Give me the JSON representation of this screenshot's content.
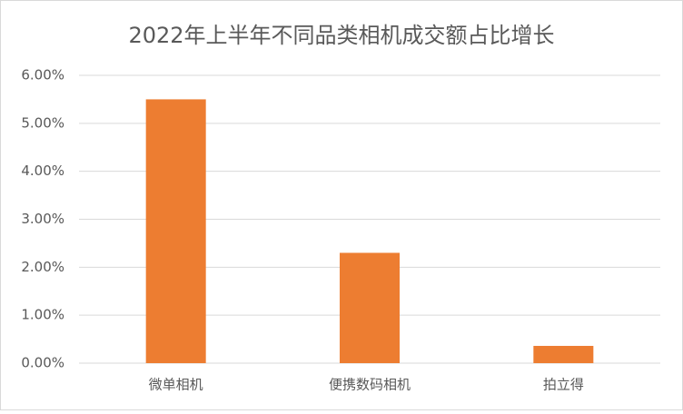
{
  "chart_data": {
    "type": "bar",
    "title": "2022年上半年不同品类相机成交额占比增长",
    "categories": [
      "微单相机",
      "便携数码相机",
      "拍立得"
    ],
    "values": [
      5.5,
      2.3,
      0.36
    ],
    "color": "#ed7d31",
    "ylim": [
      0,
      6
    ],
    "yticks": [
      {
        "value": 0,
        "label": "0.00%"
      },
      {
        "value": 1,
        "label": "1.00%"
      },
      {
        "value": 2,
        "label": "2.00%"
      },
      {
        "value": 3,
        "label": "3.00%"
      },
      {
        "value": 4,
        "label": "4.00%"
      },
      {
        "value": 5,
        "label": "5.00%"
      },
      {
        "value": 6,
        "label": "6.00%"
      }
    ],
    "grid": true
  }
}
